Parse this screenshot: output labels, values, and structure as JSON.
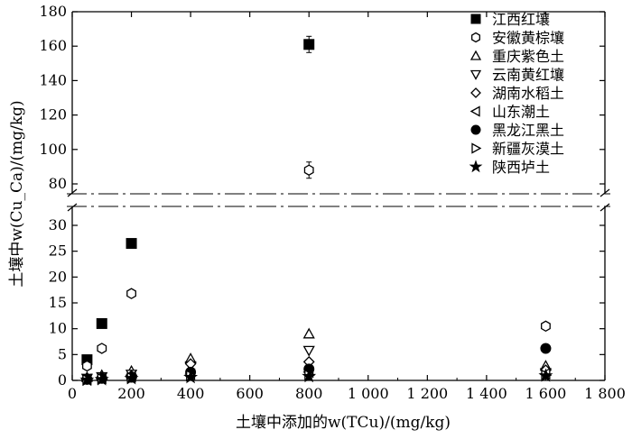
{
  "chart_data": {
    "type": "scatter",
    "title": "",
    "xlabel": "土壤中添加的w(TCu)/(mg/kg)",
    "ylabel": "土壤中w(Cu_Ca)/(mg/kg)",
    "x_ticks": [
      "0",
      "200",
      "400",
      "600",
      "800",
      "1 000",
      "1 200",
      "1 400",
      "1 600",
      "1 800"
    ],
    "x_tick_values": [
      0,
      200,
      400,
      600,
      800,
      1000,
      1200,
      1400,
      1600,
      1800
    ],
    "xlim": [
      0,
      1800
    ],
    "y_axis_broken": true,
    "ylim_lower": [
      0,
      33
    ],
    "ylim_upper": [
      72,
      180
    ],
    "y_ticks_lower": [
      0,
      5,
      10,
      15,
      20,
      25,
      30
    ],
    "y_ticks_upper": [
      80,
      100,
      120,
      140,
      160,
      180
    ],
    "legend_position": "top-right",
    "series": [
      {
        "name": "江西红壤",
        "marker": "square-filled",
        "x": [
          50,
          100,
          200,
          800
        ],
        "y": [
          4,
          11,
          26.5,
          161
        ]
      },
      {
        "name": "安徽黄棕壤",
        "marker": "hexagon-open",
        "x": [
          50,
          100,
          200,
          800,
          1600
        ],
        "y": [
          2.8,
          6.2,
          16.8,
          88,
          10.5
        ]
      },
      {
        "name": "重庆紫色土",
        "marker": "triangle-up-open",
        "x": [
          50,
          100,
          200,
          400,
          800,
          1600
        ],
        "y": [
          0.6,
          1.0,
          1.8,
          4.2,
          9.0,
          2.8
        ]
      },
      {
        "name": "云南黄红壤",
        "marker": "triangle-down-open",
        "x": [
          50,
          100,
          200,
          400,
          800,
          1600
        ],
        "y": [
          0.4,
          0.7,
          1.2,
          2.8,
          5.8,
          1.5
        ]
      },
      {
        "name": "湖南水稻土",
        "marker": "diamond-open",
        "x": [
          50,
          100,
          200,
          400,
          800,
          1600
        ],
        "y": [
          0.3,
          0.5,
          0.9,
          3.2,
          3.6,
          2.0
        ]
      },
      {
        "name": "山东潮土",
        "marker": "triangle-left-open",
        "x": [
          50,
          100,
          200,
          400,
          800,
          1600
        ],
        "y": [
          0.2,
          0.4,
          0.7,
          1.2,
          1.6,
          1.3
        ]
      },
      {
        "name": "黑龙江黑土",
        "marker": "circle-filled",
        "x": [
          50,
          100,
          200,
          400,
          800,
          1600
        ],
        "y": [
          0.2,
          0.4,
          0.6,
          1.6,
          2.2,
          6.2
        ]
      },
      {
        "name": "新疆灰漠土",
        "marker": "triangle-right-open",
        "x": [
          50,
          100,
          200,
          400,
          800,
          1600
        ],
        "y": [
          0.1,
          0.3,
          0.5,
          0.9,
          1.0,
          1.0
        ]
      },
      {
        "name": "陕西垆土",
        "marker": "star-filled",
        "x": [
          50,
          100,
          200,
          400,
          800,
          1600
        ],
        "y": [
          0.1,
          0.2,
          0.4,
          0.6,
          0.8,
          0.9
        ]
      }
    ]
  }
}
